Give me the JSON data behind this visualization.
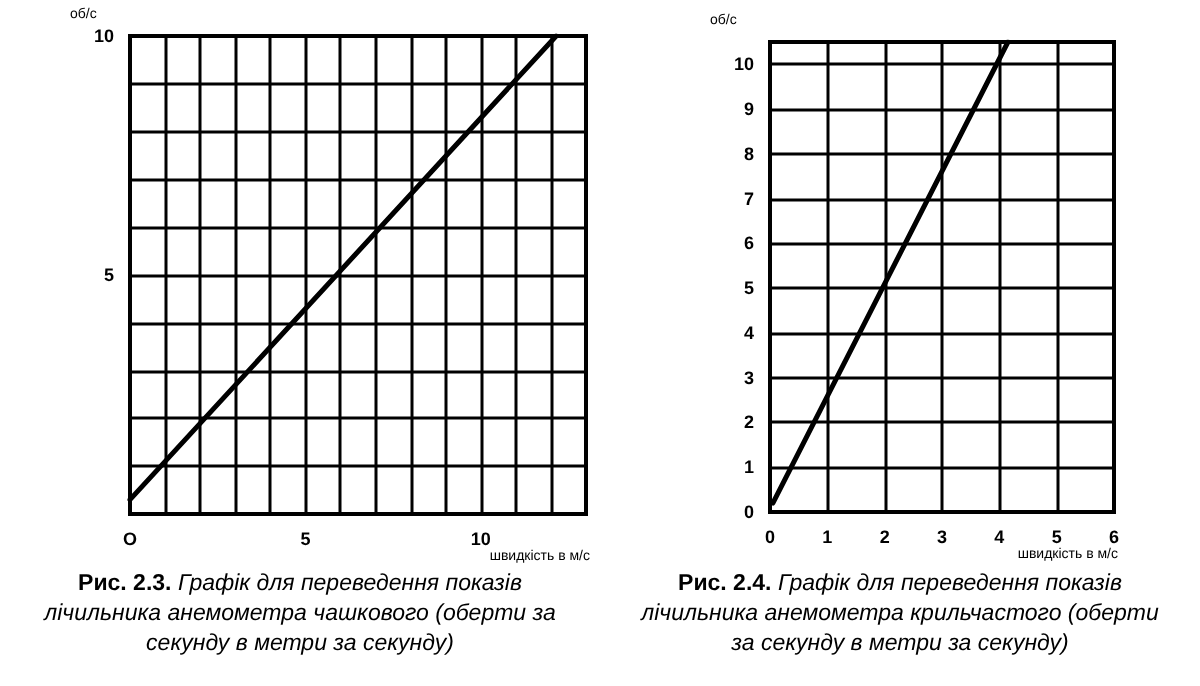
{
  "chart_data": [
    {
      "type": "line",
      "xlabel": "швидкість в м/с",
      "ylabel": "об/с",
      "annotations": [
        "Рис. 2.3.",
        "Графік для переведення показів лічильника анемометра чашкового (оберти за секунду в метри за секунду)"
      ],
      "series": [
        {
          "color": "#000000",
          "x": [
            0,
            12.15
          ],
          "values": [
            0.3,
            10
          ]
        }
      ],
      "xlim": [
        0,
        13
      ],
      "ylim": [
        0,
        10
      ],
      "xticks": [
        {
          "value": 0,
          "label": "O"
        },
        {
          "value": 1,
          "label": null
        },
        {
          "value": 2,
          "label": null
        },
        {
          "value": 3,
          "label": null
        },
        {
          "value": 4,
          "label": null
        },
        5,
        {
          "value": 6,
          "label": null
        },
        {
          "value": 7,
          "label": null
        },
        {
          "value": 8,
          "label": null
        },
        {
          "value": 9,
          "label": null
        },
        10,
        {
          "value": 11,
          "label": null
        },
        {
          "value": 12,
          "label": null
        },
        {
          "value": 13,
          "label": null
        }
      ],
      "yticks": [
        {
          "value": 1,
          "label": null
        },
        {
          "value": 2,
          "label": null
        },
        {
          "value": 3,
          "label": null
        },
        {
          "value": 4,
          "label": null
        },
        5,
        {
          "value": 6,
          "label": null
        },
        {
          "value": 7,
          "label": null
        },
        {
          "value": 8,
          "label": null
        },
        {
          "value": 9,
          "label": null
        },
        10
      ],
      "grid": true,
      "marker": "none",
      "line_style": "solid"
    },
    {
      "type": "line",
      "xlabel": "швидкість в м/с",
      "ylabel": "об/с",
      "annotations": [
        "Рис. 2.4.",
        "Графік для переведення показів лічильника анемометра крильчастого (оберти за секунду в метри за секунду)"
      ],
      "series": [
        {
          "color": "#000000",
          "x": [
            0.05,
            4.15
          ],
          "values": [
            0.2,
            10.5
          ]
        }
      ],
      "xlim": [
        0,
        6
      ],
      "ylim": [
        0,
        10.5
      ],
      "xticks": [
        0,
        1,
        2,
        3,
        4,
        5,
        6
      ],
      "yticks": [
        0,
        1,
        2,
        3,
        4,
        5,
        6,
        7,
        8,
        9,
        10
      ],
      "grid": true,
      "marker": "none",
      "line_style": "solid"
    }
  ]
}
